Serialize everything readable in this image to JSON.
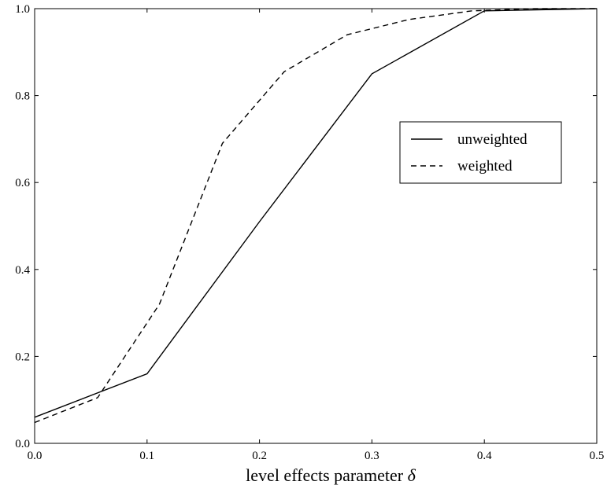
{
  "chart_data": {
    "type": "line",
    "xlabel": "level effects parameter",
    "xlabel_symbol": "δ",
    "xlim": [
      0.0,
      0.5
    ],
    "ylim": [
      0.0,
      1.0
    ],
    "xticks": [
      0.0,
      0.1,
      0.2,
      0.3,
      0.4,
      0.5
    ],
    "xtick_labels": [
      "0.0",
      "0.1",
      "0.2",
      "0.3",
      "0.4",
      "0.5"
    ],
    "yticks": [
      0.0,
      0.2,
      0.4,
      0.6,
      0.8,
      1.0
    ],
    "ytick_labels": [
      "0.0",
      "0.2",
      "0.4",
      "0.6",
      "0.8",
      "1.0"
    ],
    "grid": false,
    "legend_position": "center-right",
    "series": [
      {
        "name": "unweighted",
        "style": "solid",
        "color": "#000000",
        "x": [
          0.0,
          0.1,
          0.2,
          0.3,
          0.4,
          0.5
        ],
        "y": [
          0.06,
          0.16,
          0.51,
          0.85,
          0.995,
          1.0
        ]
      },
      {
        "name": "weighted",
        "style": "dashed",
        "color": "#000000",
        "x": [
          0.0,
          0.056,
          0.111,
          0.167,
          0.222,
          0.278,
          0.333,
          0.389,
          0.444,
          0.5
        ],
        "y": [
          0.048,
          0.105,
          0.32,
          0.69,
          0.855,
          0.94,
          0.975,
          0.995,
          1.0,
          1.0
        ]
      }
    ]
  }
}
